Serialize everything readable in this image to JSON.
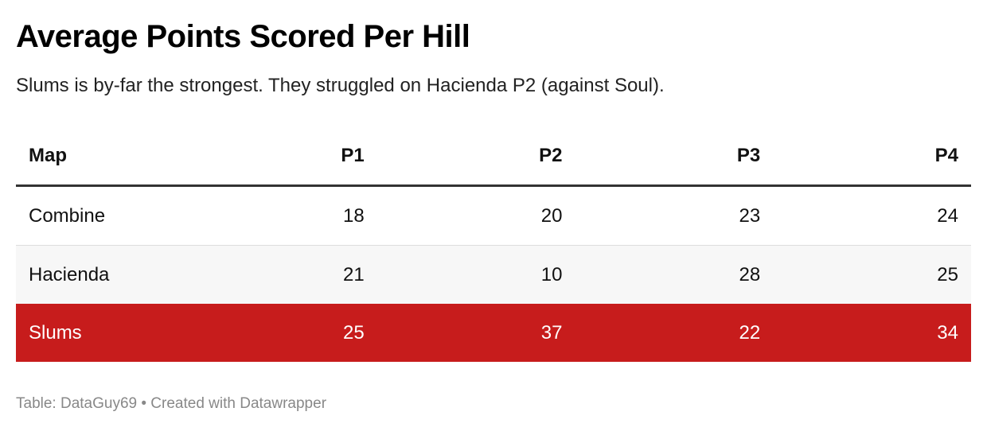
{
  "header": {
    "title": "Average Points Scored Per Hill",
    "subtitle": "Slums is by-far the strongest. They struggled on Hacienda P2 (against Soul)."
  },
  "footer": {
    "text": "Table: DataGuy69 • Created with Datawrapper"
  },
  "colors": {
    "highlight_row": "#c71c1c",
    "highlight_text": "#ffffff",
    "stripe_row": "#f7f7f7"
  },
  "chart_data": {
    "type": "table",
    "title": "Average Points Scored Per Hill",
    "subtitle": "Slums is by-far the strongest. They struggled on Hacienda P2 (against Soul).",
    "columns": [
      "Map",
      "P1",
      "P2",
      "P3",
      "P4"
    ],
    "rows": [
      {
        "map": "Combine",
        "values": [
          18,
          20,
          23,
          24
        ],
        "highlighted": false
      },
      {
        "map": "Hacienda",
        "values": [
          21,
          10,
          28,
          25
        ],
        "highlighted": false
      },
      {
        "map": "Slums",
        "values": [
          25,
          37,
          22,
          34
        ],
        "highlighted": true
      }
    ],
    "source": "Table: DataGuy69 • Created with Datawrapper"
  }
}
